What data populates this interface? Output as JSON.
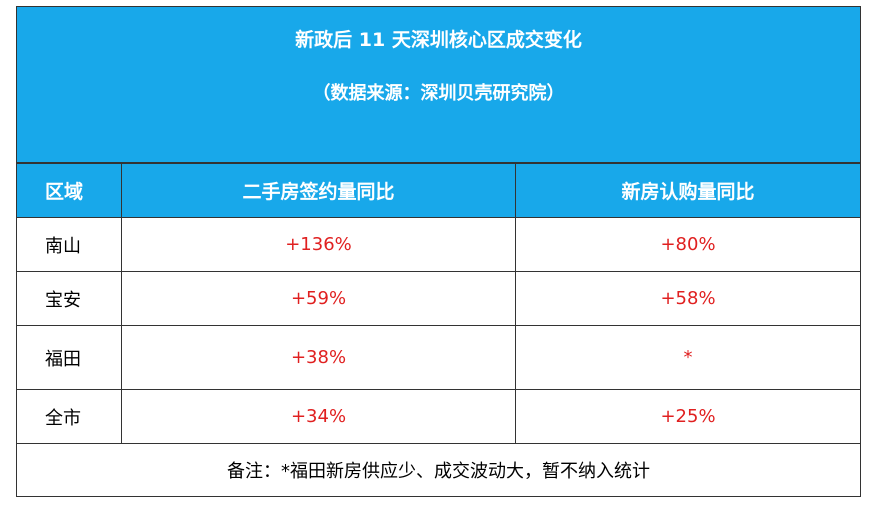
{
  "header": {
    "title": "新政后 11 天深圳核心区成交变化",
    "subtitle": "（数据来源：深圳贝壳研究院）"
  },
  "table": {
    "columns": [
      "区域",
      "二手房签约量同比",
      "新房认购量同比"
    ],
    "rows": [
      [
        "南山",
        "+136%",
        "+80%"
      ],
      [
        "宝安",
        "+59%",
        "+58%"
      ],
      [
        "福田",
        "+38%",
        "*"
      ],
      [
        "全市",
        "+34%",
        "+25%"
      ]
    ]
  },
  "footnote": "备注：*福田新房供应少、成交波动大，暂不纳入统计"
}
